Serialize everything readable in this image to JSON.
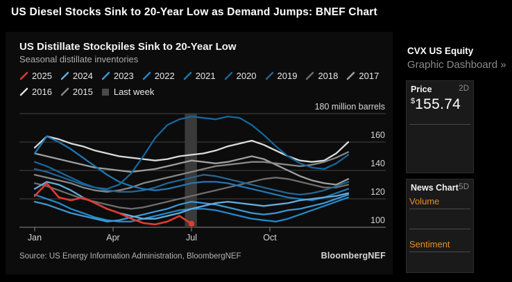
{
  "page": {
    "headline": "US Diesel Stocks Sink to 20-Year Low as Demand Jumps: BNEF Chart"
  },
  "chart": {
    "title": "US Distillate Stockpiles Sink to 20-Year Low",
    "subtitle": "Seasonal distillate inventories",
    "source": "Source: US Energy Information Administration, BloombergNEF",
    "brand": "BloombergNEF"
  },
  "chart_data": {
    "type": "line",
    "title": "US Distillate Stockpiles Sink to 20-Year Low",
    "subtitle": "Seasonal distillate inventories",
    "ylabel": "million barrels",
    "unit_label": "180 million barrels",
    "grid": true,
    "legend_position": "top",
    "x_axis": {
      "unit": "week of year",
      "range": [
        0,
        52
      ],
      "ticks": [
        {
          "week": 0,
          "label": "Jan"
        },
        {
          "week": 13,
          "label": "Apr"
        },
        {
          "week": 26,
          "label": "Jul"
        },
        {
          "week": 39,
          "label": "Oct"
        }
      ]
    },
    "y_axis": {
      "unit": "million barrels",
      "range": [
        95,
        182
      ],
      "gridlines": [
        100,
        120,
        140,
        160,
        180
      ],
      "tick_labels": [
        {
          "value": 180,
          "label": "180 million barrels"
        },
        {
          "value": 160,
          "label": "160"
        },
        {
          "value": 140,
          "label": "140"
        },
        {
          "value": 120,
          "label": "120"
        },
        {
          "value": 100,
          "label": "100"
        }
      ]
    },
    "highlight_band": {
      "label": "Last week",
      "week_start": 24.9,
      "week_end": 26.9,
      "color": "#3a3a3a"
    },
    "legend_rows": [
      [
        {
          "label": "2025",
          "color": "#e03c31",
          "marker": "slash"
        },
        {
          "label": "2024",
          "color": "#63aede",
          "marker": "slash"
        },
        {
          "label": "2023",
          "color": "#3d97d3",
          "marker": "slash"
        },
        {
          "label": "2022",
          "color": "#2488cb",
          "marker": "slash"
        },
        {
          "label": "2021",
          "color": "#1f78b4",
          "marker": "slash"
        },
        {
          "label": "2020",
          "color": "#15679d",
          "marker": "slash"
        },
        {
          "label": "2019",
          "color": "#27648f",
          "marker": "slash"
        },
        {
          "label": "2018",
          "color": "#6e6e6e",
          "marker": "slash"
        },
        {
          "label": "2017",
          "color": "#a0a0a0",
          "marker": "slash"
        }
      ],
      [
        {
          "label": "2016",
          "color": "#dcdcdc",
          "marker": "slash"
        },
        {
          "label": "2015",
          "color": "#878787",
          "marker": "slash"
        },
        {
          "label": "Last week",
          "color": "#4a4a4a",
          "marker": "square"
        }
      ]
    ],
    "series": [
      {
        "name": "2017",
        "color": "#a0a0a0",
        "week_start": 0,
        "week_step": 2,
        "values": [
          152,
          150,
          148,
          146,
          144,
          142,
          141,
          140,
          139,
          140,
          141,
          143,
          145,
          147,
          146,
          145,
          146,
          148,
          150,
          148,
          144,
          140,
          136,
          133,
          131,
          130,
          134
        ]
      },
      {
        "name": "2016",
        "color": "#dcdcdc",
        "week_start": 0,
        "week_step": 2,
        "values": [
          156,
          164,
          162,
          159,
          157,
          154,
          152,
          150,
          149,
          148,
          147,
          148,
          150,
          151,
          152,
          154,
          157,
          159,
          161,
          158,
          154,
          150,
          147,
          146,
          147,
          152,
          160
        ]
      },
      {
        "name": "2015",
        "color": "#878787",
        "week_start": 0,
        "week_step": 2,
        "values": [
          137,
          135,
          133,
          131,
          128,
          126,
          125,
          126,
          128,
          131,
          133,
          135,
          137,
          139,
          141,
          143,
          144,
          145,
          146,
          146,
          145,
          144,
          143,
          144,
          146,
          149,
          153
        ]
      },
      {
        "name": "2018",
        "color": "#6e6e6e",
        "week_start": 0,
        "week_step": 2,
        "values": [
          131,
          129,
          126,
          123,
          120,
          118,
          116,
          114,
          113,
          114,
          116,
          118,
          120,
          122,
          124,
          126,
          128,
          130,
          132,
          134,
          135,
          134,
          132,
          130,
          128,
          128,
          130
        ]
      },
      {
        "name": "2019",
        "color": "#27648f",
        "week_start": 0,
        "week_step": 2,
        "values": [
          141,
          139,
          136,
          133,
          130,
          128,
          126,
          125,
          125,
          126,
          128,
          131,
          133,
          135,
          137,
          136,
          134,
          132,
          130,
          128,
          126,
          124,
          123,
          124,
          126,
          129,
          132
        ]
      },
      {
        "name": "2021",
        "color": "#1f78b4",
        "week_start": 0,
        "week_step": 2,
        "values": [
          152,
          164,
          160,
          155,
          149,
          143,
          137,
          132,
          129,
          127,
          126,
          127,
          129,
          131,
          132,
          132,
          131,
          129,
          127,
          125,
          123,
          121,
          120,
          119,
          121,
          124,
          127
        ]
      },
      {
        "name": "2020",
        "color": "#15679d",
        "week_start": 0,
        "week_step": 2,
        "values": [
          146,
          143,
          139,
          135,
          131,
          128,
          127,
          130,
          138,
          150,
          163,
          172,
          176,
          178,
          177,
          176,
          178,
          177,
          172,
          165,
          157,
          150,
          145,
          142,
          141,
          145,
          151
        ]
      },
      {
        "name": "2022",
        "color": "#2488cb",
        "week_start": 0,
        "week_step": 2,
        "values": [
          123,
          120,
          117,
          113,
          110,
          107,
          105,
          104,
          104,
          106,
          108,
          110,
          112,
          113,
          113,
          112,
          110,
          108,
          106,
          105,
          104,
          106,
          109,
          112,
          115,
          118,
          121
        ]
      },
      {
        "name": "2023",
        "color": "#3d97d3",
        "week_start": 0,
        "week_step": 2,
        "values": [
          118,
          116,
          113,
          110,
          108,
          106,
          104,
          105,
          107,
          109,
          111,
          113,
          116,
          118,
          117,
          116,
          114,
          112,
          110,
          109,
          110,
          112,
          113,
          115,
          117,
          120,
          123
        ]
      },
      {
        "name": "2024",
        "color": "#63aede",
        "week_start": 0,
        "week_step": 2,
        "values": [
          127,
          132,
          130,
          126,
          121,
          117,
          113,
          110,
          108,
          106,
          106,
          108,
          110,
          113,
          115,
          117,
          118,
          117,
          116,
          115,
          116,
          117,
          119,
          120,
          121,
          122,
          124
        ]
      },
      {
        "name": "2025",
        "color": "#e03c31",
        "week_start": 0,
        "week_step": 2,
        "end_dot": true,
        "values": [
          122,
          131,
          121,
          119,
          121,
          117,
          113,
          110,
          106,
          103,
          102,
          104,
          108,
          102.5
        ]
      }
    ]
  },
  "sidebar": {
    "ticker": "CVX US Equity",
    "dashboard_link": "Graphic Dashboard »",
    "link_color": "#ef8d1e",
    "price_card": {
      "title": "Price",
      "period": "2D",
      "currency": "$",
      "price": "155.74"
    },
    "news_card": {
      "title": "News Chart",
      "period": "5D",
      "links": [
        "Volume",
        "Sentiment"
      ]
    }
  }
}
